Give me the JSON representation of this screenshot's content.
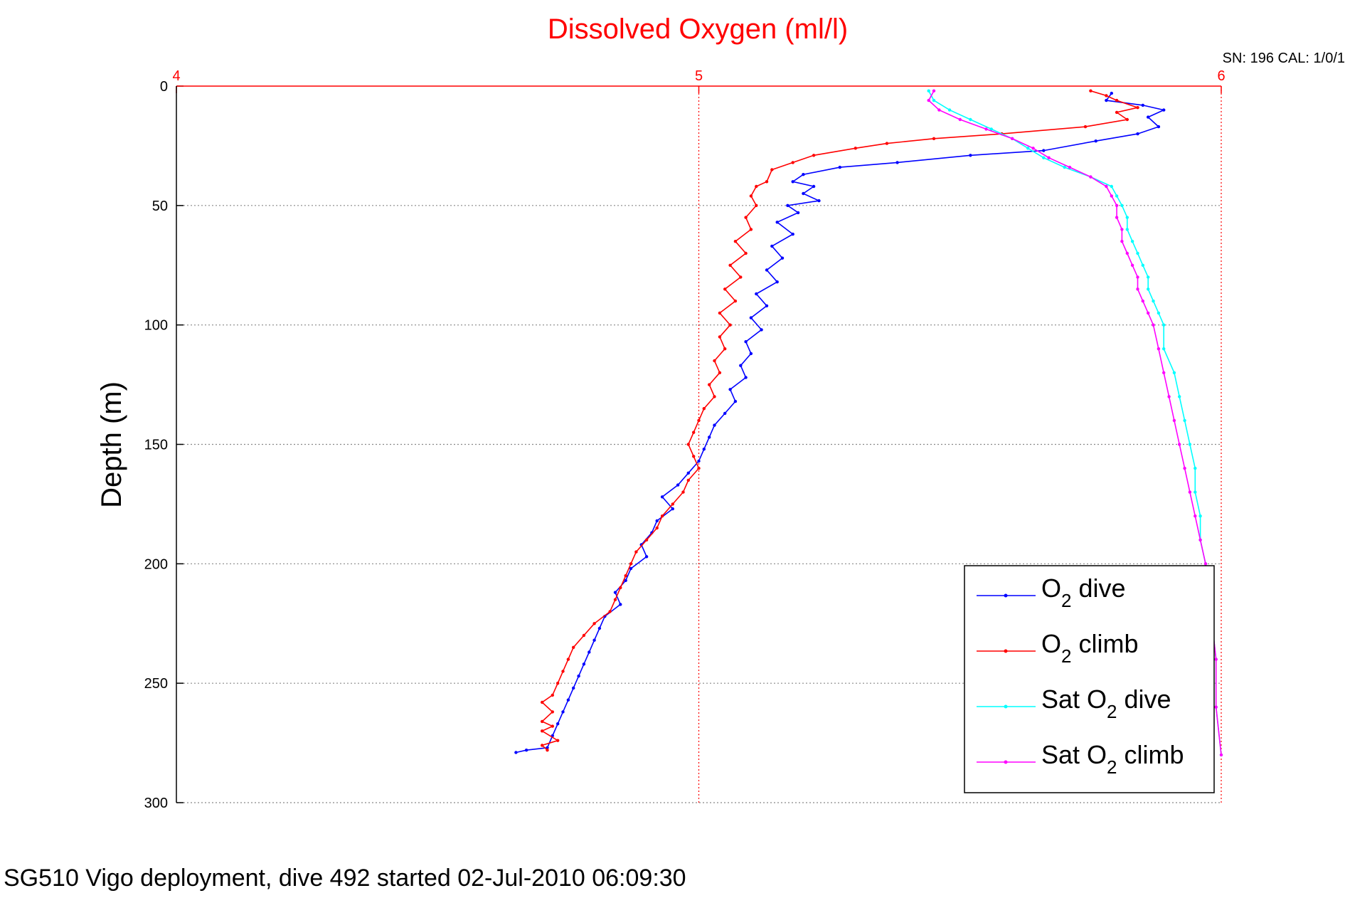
{
  "figure": {
    "title": "Dissolved Oxygen (ml/l)",
    "serial": "SN: 196  CAL: 1/0/1",
    "footer": "SG510 Vigo deployment, dive 492 started 02-Jul-2010 06:09:30"
  },
  "colors": {
    "o2_dive": "#0000ff",
    "o2_climb": "#ff0000",
    "sat_dive": "#00ffff",
    "sat_climb": "#ff00ff",
    "title": "#ff0000",
    "top_axis": "#ff0000",
    "grid": "#888888"
  },
  "chart_data": {
    "type": "line",
    "title": "Dissolved Oxygen (ml/l)",
    "xlabel": "",
    "ylabel": "Depth (m)",
    "xlim": [
      4,
      6
    ],
    "ylim": [
      0,
      300
    ],
    "y_reversed": true,
    "x_axis_position": "top",
    "xticks": [
      4,
      5,
      6
    ],
    "yticks": [
      0,
      50,
      100,
      150,
      200,
      250,
      300
    ],
    "grid": true,
    "legend_position": "bottom-right",
    "series": [
      {
        "key": "o2_dive",
        "legend": {
          "base": "O",
          "sub": "2",
          "rest": " dive"
        },
        "points": [
          [
            5.79,
            3
          ],
          [
            5.78,
            6
          ],
          [
            5.85,
            8
          ],
          [
            5.89,
            10
          ],
          [
            5.86,
            13
          ],
          [
            5.88,
            17
          ],
          [
            5.84,
            20
          ],
          [
            5.76,
            23
          ],
          [
            5.66,
            27
          ],
          [
            5.52,
            29
          ],
          [
            5.38,
            32
          ],
          [
            5.27,
            34
          ],
          [
            5.2,
            37
          ],
          [
            5.18,
            40
          ],
          [
            5.22,
            42
          ],
          [
            5.2,
            45
          ],
          [
            5.23,
            48
          ],
          [
            5.17,
            50
          ],
          [
            5.19,
            53
          ],
          [
            5.15,
            57
          ],
          [
            5.18,
            62
          ],
          [
            5.14,
            67
          ],
          [
            5.16,
            72
          ],
          [
            5.13,
            77
          ],
          [
            5.15,
            82
          ],
          [
            5.11,
            87
          ],
          [
            5.13,
            92
          ],
          [
            5.1,
            97
          ],
          [
            5.12,
            102
          ],
          [
            5.09,
            107
          ],
          [
            5.1,
            112
          ],
          [
            5.08,
            117
          ],
          [
            5.09,
            122
          ],
          [
            5.06,
            127
          ],
          [
            5.07,
            132
          ],
          [
            5.05,
            137
          ],
          [
            5.03,
            142
          ],
          [
            5.02,
            147
          ],
          [
            5.01,
            152
          ],
          [
            5.0,
            157
          ],
          [
            4.98,
            162
          ],
          [
            4.96,
            167
          ],
          [
            4.93,
            172
          ],
          [
            4.95,
            177
          ],
          [
            4.92,
            182
          ],
          [
            4.91,
            187
          ],
          [
            4.89,
            192
          ],
          [
            4.9,
            197
          ],
          [
            4.87,
            202
          ],
          [
            4.86,
            207
          ],
          [
            4.84,
            212
          ],
          [
            4.85,
            217
          ],
          [
            4.82,
            222
          ],
          [
            4.81,
            227
          ],
          [
            4.8,
            232
          ],
          [
            4.79,
            237
          ],
          [
            4.78,
            242
          ],
          [
            4.77,
            247
          ],
          [
            4.76,
            252
          ],
          [
            4.75,
            257
          ],
          [
            4.74,
            262
          ],
          [
            4.73,
            267
          ],
          [
            4.72,
            272
          ],
          [
            4.71,
            277
          ],
          [
            4.67,
            278
          ],
          [
            4.65,
            279
          ]
        ]
      },
      {
        "key": "o2_climb",
        "legend": {
          "base": "O",
          "sub": "2",
          "rest": " climb"
        },
        "points": [
          [
            5.75,
            2
          ],
          [
            5.78,
            4
          ],
          [
            5.8,
            6
          ],
          [
            5.84,
            9
          ],
          [
            5.8,
            11
          ],
          [
            5.82,
            14
          ],
          [
            5.74,
            17
          ],
          [
            5.58,
            20
          ],
          [
            5.45,
            22
          ],
          [
            5.36,
            24
          ],
          [
            5.3,
            26
          ],
          [
            5.22,
            29
          ],
          [
            5.18,
            32
          ],
          [
            5.14,
            35
          ],
          [
            5.13,
            40
          ],
          [
            5.11,
            42
          ],
          [
            5.1,
            46
          ],
          [
            5.11,
            50
          ],
          [
            5.09,
            55
          ],
          [
            5.1,
            60
          ],
          [
            5.07,
            65
          ],
          [
            5.09,
            70
          ],
          [
            5.06,
            75
          ],
          [
            5.08,
            80
          ],
          [
            5.05,
            85
          ],
          [
            5.07,
            90
          ],
          [
            5.04,
            95
          ],
          [
            5.06,
            100
          ],
          [
            5.04,
            105
          ],
          [
            5.05,
            110
          ],
          [
            5.03,
            115
          ],
          [
            5.04,
            120
          ],
          [
            5.02,
            125
          ],
          [
            5.03,
            130
          ],
          [
            5.01,
            135
          ],
          [
            5.0,
            140
          ],
          [
            4.99,
            145
          ],
          [
            4.98,
            150
          ],
          [
            4.99,
            155
          ],
          [
            5.0,
            160
          ],
          [
            4.98,
            165
          ],
          [
            4.97,
            170
          ],
          [
            4.95,
            175
          ],
          [
            4.93,
            180
          ],
          [
            4.92,
            185
          ],
          [
            4.9,
            190
          ],
          [
            4.88,
            195
          ],
          [
            4.87,
            200
          ],
          [
            4.86,
            205
          ],
          [
            4.85,
            210
          ],
          [
            4.84,
            215
          ],
          [
            4.83,
            220
          ],
          [
            4.8,
            225
          ],
          [
            4.78,
            230
          ],
          [
            4.76,
            235
          ],
          [
            4.75,
            240
          ],
          [
            4.74,
            245
          ],
          [
            4.73,
            250
          ],
          [
            4.72,
            255
          ],
          [
            4.7,
            258
          ],
          [
            4.72,
            262
          ],
          [
            4.7,
            266
          ],
          [
            4.72,
            268
          ],
          [
            4.7,
            270
          ],
          [
            4.73,
            274
          ],
          [
            4.7,
            276
          ],
          [
            4.71,
            278
          ]
        ]
      },
      {
        "key": "sat_dive",
        "legend": {
          "base": "Sat O",
          "sub": "2",
          "rest": " dive"
        },
        "points": [
          [
            5.44,
            2
          ],
          [
            5.45,
            6
          ],
          [
            5.48,
            10
          ],
          [
            5.52,
            14
          ],
          [
            5.56,
            18
          ],
          [
            5.6,
            22
          ],
          [
            5.63,
            26
          ],
          [
            5.66,
            30
          ],
          [
            5.7,
            34
          ],
          [
            5.75,
            38
          ],
          [
            5.79,
            42
          ],
          [
            5.8,
            46
          ],
          [
            5.81,
            50
          ],
          [
            5.82,
            55
          ],
          [
            5.82,
            60
          ],
          [
            5.83,
            65
          ],
          [
            5.84,
            70
          ],
          [
            5.85,
            75
          ],
          [
            5.86,
            80
          ],
          [
            5.86,
            85
          ],
          [
            5.87,
            90
          ],
          [
            5.88,
            95
          ],
          [
            5.89,
            100
          ],
          [
            5.89,
            110
          ],
          [
            5.91,
            120
          ],
          [
            5.92,
            130
          ],
          [
            5.93,
            140
          ],
          [
            5.94,
            150
          ],
          [
            5.95,
            160
          ],
          [
            5.95,
            170
          ],
          [
            5.96,
            180
          ],
          [
            5.96,
            190
          ],
          [
            5.97,
            200
          ],
          [
            5.98,
            220
          ],
          [
            5.99,
            240
          ],
          [
            5.99,
            260
          ],
          [
            6.0,
            280
          ]
        ]
      },
      {
        "key": "sat_climb",
        "legend": {
          "base": "Sat O",
          "sub": "2",
          "rest": " climb"
        },
        "points": [
          [
            5.45,
            2
          ],
          [
            5.44,
            6
          ],
          [
            5.46,
            10
          ],
          [
            5.5,
            14
          ],
          [
            5.55,
            18
          ],
          [
            5.6,
            22
          ],
          [
            5.64,
            26
          ],
          [
            5.67,
            30
          ],
          [
            5.71,
            34
          ],
          [
            5.75,
            38
          ],
          [
            5.78,
            42
          ],
          [
            5.79,
            46
          ],
          [
            5.8,
            50
          ],
          [
            5.8,
            55
          ],
          [
            5.81,
            60
          ],
          [
            5.81,
            65
          ],
          [
            5.82,
            70
          ],
          [
            5.83,
            75
          ],
          [
            5.84,
            80
          ],
          [
            5.84,
            85
          ],
          [
            5.85,
            90
          ],
          [
            5.86,
            95
          ],
          [
            5.87,
            100
          ],
          [
            5.88,
            110
          ],
          [
            5.89,
            120
          ],
          [
            5.9,
            130
          ],
          [
            5.91,
            140
          ],
          [
            5.92,
            150
          ],
          [
            5.93,
            160
          ],
          [
            5.94,
            170
          ],
          [
            5.95,
            180
          ],
          [
            5.96,
            190
          ],
          [
            5.97,
            200
          ],
          [
            5.98,
            220
          ],
          [
            5.99,
            240
          ],
          [
            5.99,
            260
          ],
          [
            6.0,
            280
          ]
        ]
      }
    ]
  }
}
